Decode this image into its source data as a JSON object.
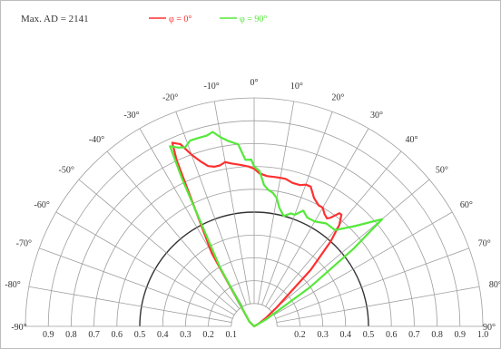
{
  "header": {
    "max_label": "Max. AD = 2141"
  },
  "chart_data": {
    "type": "line",
    "subtype": "polar-half",
    "title": "",
    "legend": {
      "placement": "top-center"
    },
    "angle_ticks": [
      "-90°",
      "-80°",
      "-70°",
      "-60°",
      "-50°",
      "-40°",
      "-30°",
      "-20°",
      "-10°",
      "0°",
      "10°",
      "20°",
      "30°",
      "40°",
      "50°",
      "60°",
      "70°",
      "80°",
      "90°"
    ],
    "radial_ticks": [
      "0.1",
      "0.2",
      "0.3",
      "0.4",
      "0.5",
      "0.6",
      "0.7",
      "0.8",
      "0.9",
      "1.0"
    ],
    "radial_axis_labels_left": [
      "0.9",
      "0.8",
      "0.7",
      "0.6",
      "0.5",
      "0.4",
      "0.3",
      "0.2",
      "0.1"
    ],
    "radial_axis_labels_right": [
      "0.2",
      "0.3",
      "0.4",
      "0.5",
      "0.6",
      "0.7",
      "0.8",
      "0.9",
      "1.0"
    ],
    "emphasis_ring": 0.5,
    "series": [
      {
        "name": "φ = 0°",
        "color": "#ff3030",
        "theta": [
          -90,
          -45,
          -30,
          -25,
          -24,
          -22,
          -20,
          -18,
          -16,
          -14,
          -12,
          -10,
          -8,
          -5,
          -2,
          0,
          2,
          5,
          8,
          10,
          12,
          15,
          18,
          20,
          22,
          25,
          28,
          30,
          32,
          34,
          35,
          37,
          38,
          40,
          42,
          44,
          45,
          50,
          55,
          60,
          90
        ],
        "r": [
          0.0,
          0.03,
          0.37,
          0.8,
          0.88,
          0.86,
          0.8,
          0.76,
          0.73,
          0.72,
          0.72,
          0.73,
          0.72,
          0.71,
          0.7,
          0.69,
          0.67,
          0.66,
          0.66,
          0.66,
          0.66,
          0.65,
          0.65,
          0.66,
          0.66,
          0.62,
          0.6,
          0.6,
          0.58,
          0.57,
          0.58,
          0.62,
          0.62,
          0.58,
          0.5,
          0.39,
          0.35,
          0.13,
          0.06,
          0.02,
          0.0
        ]
      },
      {
        "name": "φ = 90°",
        "color": "#55e83a",
        "theta": [
          -90,
          -45,
          -30,
          -26,
          -25,
          -23,
          -21,
          -19,
          -16,
          -14,
          -12,
          -10,
          -8,
          -5,
          -3,
          -1,
          0,
          2,
          4,
          6,
          8,
          10,
          12,
          15,
          18,
          20,
          23,
          26,
          30,
          35,
          40,
          45,
          50,
          52,
          55,
          60,
          90
        ],
        "r": [
          0.0,
          0.03,
          0.3,
          0.72,
          0.87,
          0.85,
          0.84,
          0.86,
          0.86,
          0.86,
          0.87,
          0.84,
          0.82,
          0.8,
          0.73,
          0.73,
          0.7,
          0.68,
          0.62,
          0.6,
          0.59,
          0.57,
          0.53,
          0.5,
          0.52,
          0.52,
          0.55,
          0.53,
          0.53,
          0.55,
          0.55,
          0.62,
          0.73,
          0.55,
          0.3,
          0.06,
          0.0
        ]
      }
    ]
  }
}
